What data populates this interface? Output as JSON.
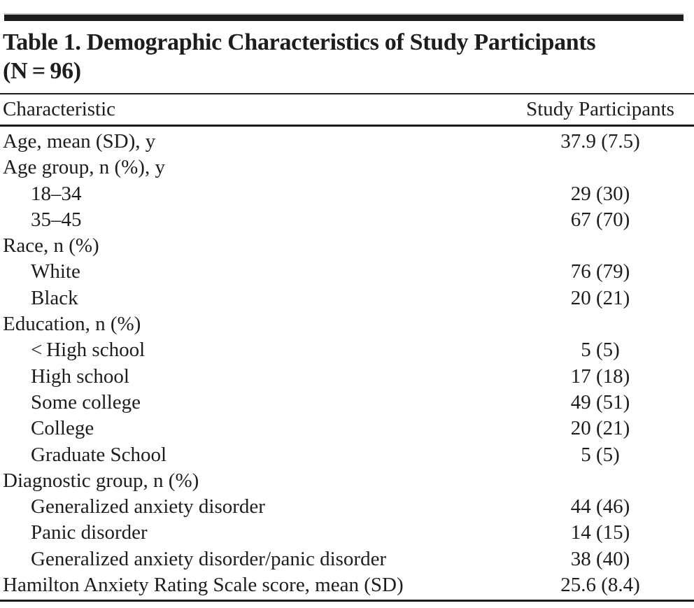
{
  "table": {
    "title_line1": "Table 1. Demographic Characteristics of Study Participants",
    "title_line2": "(N = 96)",
    "header": {
      "characteristic": "Characteristic",
      "participants": "Study Participants"
    },
    "rows": [
      {
        "label": "Age, mean (SD), y",
        "value": "37.9 (7.5)",
        "indent": false
      },
      {
        "label": "Age group, n (%), y",
        "value": "",
        "indent": false
      },
      {
        "label": "18–34",
        "value": "29 (30)",
        "indent": true
      },
      {
        "label": "35–45",
        "value": "67 (70)",
        "indent": true
      },
      {
        "label": "Race, n (%)",
        "value": "",
        "indent": false
      },
      {
        "label": "White",
        "value": "76 (79)",
        "indent": true
      },
      {
        "label": "Black",
        "value": "20 (21)",
        "indent": true
      },
      {
        "label": "Education, n (%)",
        "value": "",
        "indent": false
      },
      {
        "label": "< High school",
        "value": "5 (5)",
        "indent": true
      },
      {
        "label": "High school",
        "value": "17 (18)",
        "indent": true
      },
      {
        "label": "Some college",
        "value": "49 (51)",
        "indent": true
      },
      {
        "label": "College",
        "value": "20 (21)",
        "indent": true
      },
      {
        "label": "Graduate School",
        "value": "5 (5)",
        "indent": true
      },
      {
        "label": "Diagnostic group, n (%)",
        "value": "",
        "indent": false
      },
      {
        "label": "Generalized anxiety disorder",
        "value": "44 (46)",
        "indent": true
      },
      {
        "label": "Panic disorder",
        "value": "14 (15)",
        "indent": true
      },
      {
        "label": "Generalized anxiety disorder/panic disorder",
        "value": "38 (40)",
        "indent": true
      },
      {
        "label": "Hamilton Anxiety Rating Scale score, mean (SD)",
        "value": "25.6 (8.4)",
        "indent": false
      }
    ],
    "colors": {
      "text": "#1d1d1d",
      "rule": "#1a1a1a",
      "header_bar": "#1e1c1a"
    }
  }
}
